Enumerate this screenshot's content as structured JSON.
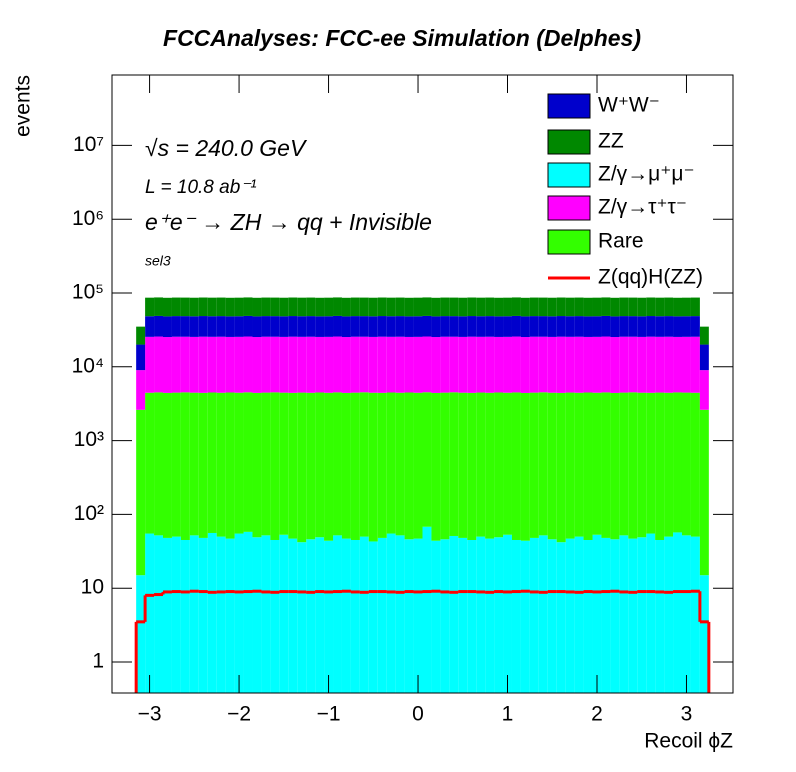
{
  "chart_data": {
    "type": "stacked_histogram",
    "title": "FCCAnalyses: FCC-ee Simulation (Delphes)",
    "x_label": "Recoil ϕZ",
    "y_label": "events",
    "annotations": [
      "√s = 240.0 GeV",
      "L = 10.8 ab⁻¹",
      "e⁺e⁻ → ZH → qq + Invisible",
      "sel3"
    ],
    "log_y": true,
    "xlim": [
      -3.42,
      3.52
    ],
    "ylim": [
      0.38,
      90000000
    ],
    "xticks": [
      {
        "value": -3,
        "label": "−3"
      },
      {
        "value": -2,
        "label": "−2"
      },
      {
        "value": -1,
        "label": "−1"
      },
      0,
      1,
      2,
      3
    ],
    "yticks": [
      1,
      10,
      {
        "value": 100,
        "label": "10²"
      },
      {
        "value": 1000,
        "label": "10³"
      },
      {
        "value": 10000,
        "label": "10⁴"
      },
      {
        "value": 100000,
        "label": "10⁵"
      },
      {
        "value": 1000000,
        "label": "10⁶"
      },
      {
        "value": 10000000,
        "label": "10⁷"
      }
    ],
    "bins": [
      -3.15,
      -3.05,
      -2.95,
      -2.85,
      -2.75,
      -2.65,
      -2.55,
      -2.45,
      -2.35,
      -2.25,
      -2.15,
      -2.05,
      -1.95,
      -1.85,
      -1.75,
      -1.65,
      -1.55,
      -1.45,
      -1.35,
      -1.25,
      -1.15,
      -1.05,
      -0.95,
      -0.85,
      -0.75,
      -0.65,
      -0.55,
      -0.45,
      -0.35,
      -0.25,
      -0.15,
      -0.05,
      0.05,
      0.15,
      0.25,
      0.35,
      0.45,
      0.55,
      0.65,
      0.75,
      0.85,
      0.95,
      1.05,
      1.15,
      1.25,
      1.35,
      1.45,
      1.55,
      1.65,
      1.75,
      1.85,
      1.95,
      2.05,
      2.15,
      2.25,
      2.35,
      2.45,
      2.55,
      2.65,
      2.75,
      2.85,
      2.95,
      3.05,
      3.15,
      3.25
    ],
    "series": [
      {
        "name": "W⁺W⁻",
        "color": "#0000cc",
        "values": [
          11000,
          23000,
          23200,
          22900,
          23100,
          23050,
          22950,
          23150,
          23000,
          23100,
          22900,
          23000,
          23200,
          22900,
          23100,
          23050,
          22950,
          23150,
          23000,
          23100,
          22900,
          23000,
          23200,
          22900,
          23100,
          23050,
          22950,
          23150,
          23000,
          23100,
          22900,
          23000,
          23200,
          22900,
          23100,
          23050,
          22950,
          23150,
          23000,
          23100,
          22900,
          23000,
          23200,
          22900,
          23100,
          23050,
          22950,
          23150,
          23000,
          23100,
          22900,
          23000,
          23200,
          22900,
          23100,
          23050,
          22950,
          23150,
          23000,
          23100,
          22900,
          23000,
          23100,
          11000
        ]
      },
      {
        "name": "ZZ",
        "color": "#008800",
        "values": [
          15000,
          38000,
          38200,
          37900,
          38100,
          38050,
          37950,
          38150,
          38000,
          38100,
          37900,
          38000,
          38200,
          37900,
          38100,
          38050,
          37950,
          38150,
          38000,
          38100,
          37900,
          38000,
          38200,
          37900,
          38100,
          38050,
          37950,
          38150,
          38000,
          38100,
          37900,
          38000,
          38200,
          37900,
          38100,
          38050,
          37950,
          38150,
          38000,
          38100,
          37900,
          38000,
          38200,
          37900,
          38100,
          38050,
          37950,
          38150,
          38000,
          38100,
          37900,
          38000,
          38200,
          37900,
          38100,
          38050,
          37950,
          38150,
          38000,
          38100,
          37900,
          38000,
          38100,
          15000
        ]
      },
      {
        "name": "Z/γ→μ⁺μ⁻",
        "color": "#00ffff",
        "values": [
          15,
          55,
          52,
          48,
          50,
          45,
          52,
          48,
          56,
          50,
          47,
          55,
          58,
          49,
          52,
          45,
          53,
          47,
          42,
          46,
          49,
          44,
          52,
          47,
          45,
          50,
          43,
          48,
          55,
          52,
          46,
          47,
          68,
          44,
          46,
          51,
          48,
          45,
          50,
          47,
          49,
          53,
          45,
          44,
          48,
          52,
          46,
          42,
          47,
          50,
          45,
          53,
          48,
          46,
          52,
          47,
          49,
          55,
          45,
          50,
          57,
          52,
          50,
          15
        ]
      },
      {
        "name": "Z/γ→τ⁺τ⁻",
        "color": "#ff00ff",
        "values": [
          6400,
          21000,
          21200,
          20900,
          21100,
          21050,
          20950,
          21150,
          21000,
          21100,
          20900,
          21000,
          21200,
          20900,
          21100,
          21050,
          20950,
          21150,
          21000,
          21100,
          20900,
          21000,
          21200,
          20900,
          21100,
          21050,
          20950,
          21150,
          21000,
          21100,
          20900,
          21000,
          21200,
          20900,
          21100,
          21050,
          20950,
          21150,
          21000,
          21100,
          20900,
          21000,
          21200,
          20900,
          21100,
          21050,
          20950,
          21150,
          21000,
          21100,
          20900,
          21000,
          21200,
          20900,
          21100,
          21050,
          20950,
          21150,
          21000,
          21100,
          20900,
          21000,
          21100,
          6400
        ]
      },
      {
        "name": "Rare",
        "color": "#33ff00",
        "values": [
          2600,
          4400,
          4450,
          4380,
          4420,
          4460,
          4410,
          4390,
          4430,
          4400,
          4440,
          4400,
          4450,
          4380,
          4420,
          4460,
          4410,
          4390,
          4430,
          4400,
          4440,
          4400,
          4450,
          4380,
          4420,
          4460,
          4410,
          4390,
          4430,
          4400,
          4440,
          4400,
          4450,
          4380,
          4420,
          4460,
          4410,
          4390,
          4430,
          4400,
          4440,
          4400,
          4450,
          4380,
          4420,
          4460,
          4410,
          4390,
          4430,
          4400,
          4440,
          4400,
          4450,
          4380,
          4420,
          4460,
          4410,
          4390,
          4430,
          4400,
          4440,
          4420,
          4400,
          2600
        ]
      },
      {
        "name": "Z(qq)H(ZZ)",
        "color": "#ff0000",
        "style": "line",
        "values": [
          3.5,
          8.0,
          8.2,
          8.9,
          9.0,
          8.9,
          9.1,
          9.0,
          8.8,
          8.9,
          9.0,
          8.9,
          9.0,
          9.1,
          8.9,
          8.8,
          9.0,
          9.0,
          8.9,
          8.8,
          9.0,
          8.9,
          9.0,
          9.1,
          8.9,
          8.8,
          9.0,
          9.0,
          8.9,
          8.8,
          9.0,
          8.9,
          9.0,
          9.1,
          8.9,
          8.8,
          9.0,
          9.0,
          8.9,
          8.8,
          9.0,
          8.9,
          9.0,
          9.1,
          8.9,
          8.8,
          9.0,
          9.0,
          8.9,
          8.8,
          9.0,
          8.9,
          9.0,
          9.1,
          8.9,
          8.8,
          9.0,
          9.0,
          8.9,
          8.8,
          9.0,
          9.0,
          9.1,
          3.5
        ]
      }
    ]
  }
}
